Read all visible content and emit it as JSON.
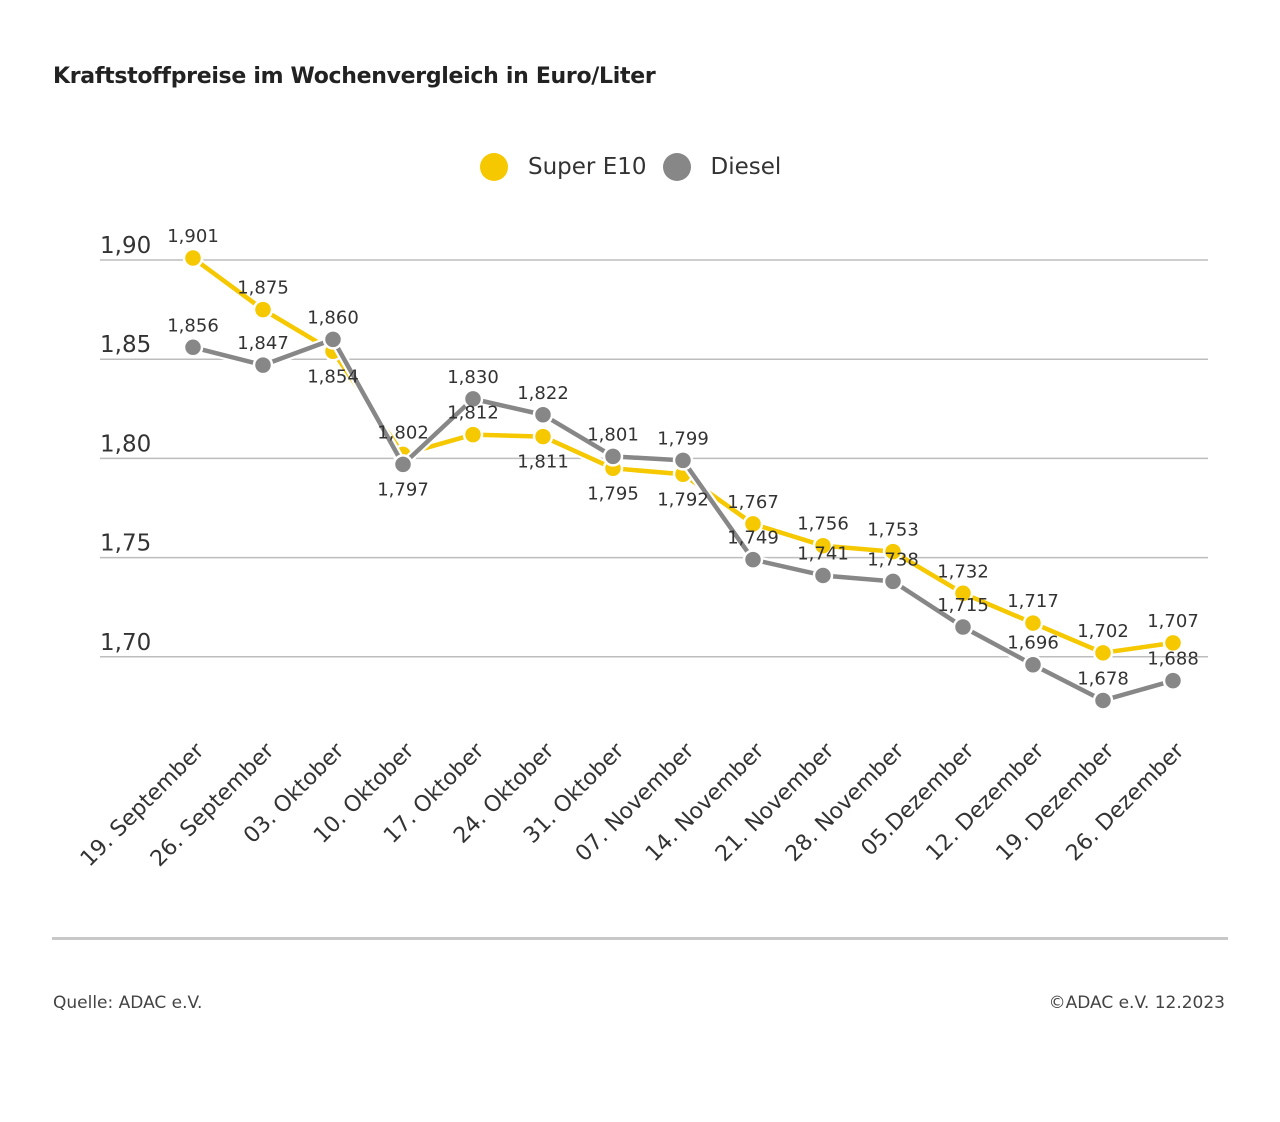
{
  "chart_data": {
    "type": "line",
    "title": "Kraftstoffpreise im Wochenvergleich in Euro/Liter",
    "categories": [
      "19. September",
      "26. September",
      "03. Oktober",
      "10. Oktober",
      "17. Oktober",
      "24. Oktober",
      "31. Oktober",
      "07. November",
      "14. November",
      "21. November",
      "28. November",
      "05.Dezember",
      "12. Dezember",
      "19. Dezember",
      "26. Dezember"
    ],
    "series": [
      {
        "name": "Super E10",
        "color": "#f5c800",
        "values": [
          1.901,
          1.875,
          1.854,
          1.802,
          1.812,
          1.811,
          1.795,
          1.792,
          1.767,
          1.756,
          1.753,
          1.732,
          1.717,
          1.702,
          1.707
        ],
        "labels": [
          "1,901",
          "1,875",
          "1,854",
          "1,802",
          "1,812",
          "1,811",
          "1,795",
          "1,792",
          "1,767",
          "1,756",
          "1,753",
          "1,732",
          "1,717",
          "1,702",
          "1,707"
        ]
      },
      {
        "name": "Diesel",
        "color": "#878787",
        "values": [
          1.856,
          1.847,
          1.86,
          1.797,
          1.83,
          1.822,
          1.801,
          1.799,
          1.749,
          1.741,
          1.738,
          1.715,
          1.696,
          1.678,
          1.688
        ],
        "labels": [
          "1,856",
          "1,847",
          "1,860",
          "1,797",
          "1,830",
          "1,822",
          "1,801",
          "1,799",
          "1,749",
          "1,741",
          "1,738",
          "1,715",
          "1,696",
          "1,678",
          "1,688"
        ]
      }
    ],
    "yticks": [
      1.9,
      1.85,
      1.8,
      1.75,
      1.7
    ],
    "ytick_labels": [
      "1,90",
      "1,85",
      "1,80",
      "1,75",
      "1,70"
    ],
    "ylim": [
      1.66,
      1.91
    ],
    "grid": true,
    "legend_position": "top-center"
  },
  "footer": {
    "source": "Quelle: ADAC e.V.",
    "copyright": "©ADAC e.V. 12.2023"
  }
}
